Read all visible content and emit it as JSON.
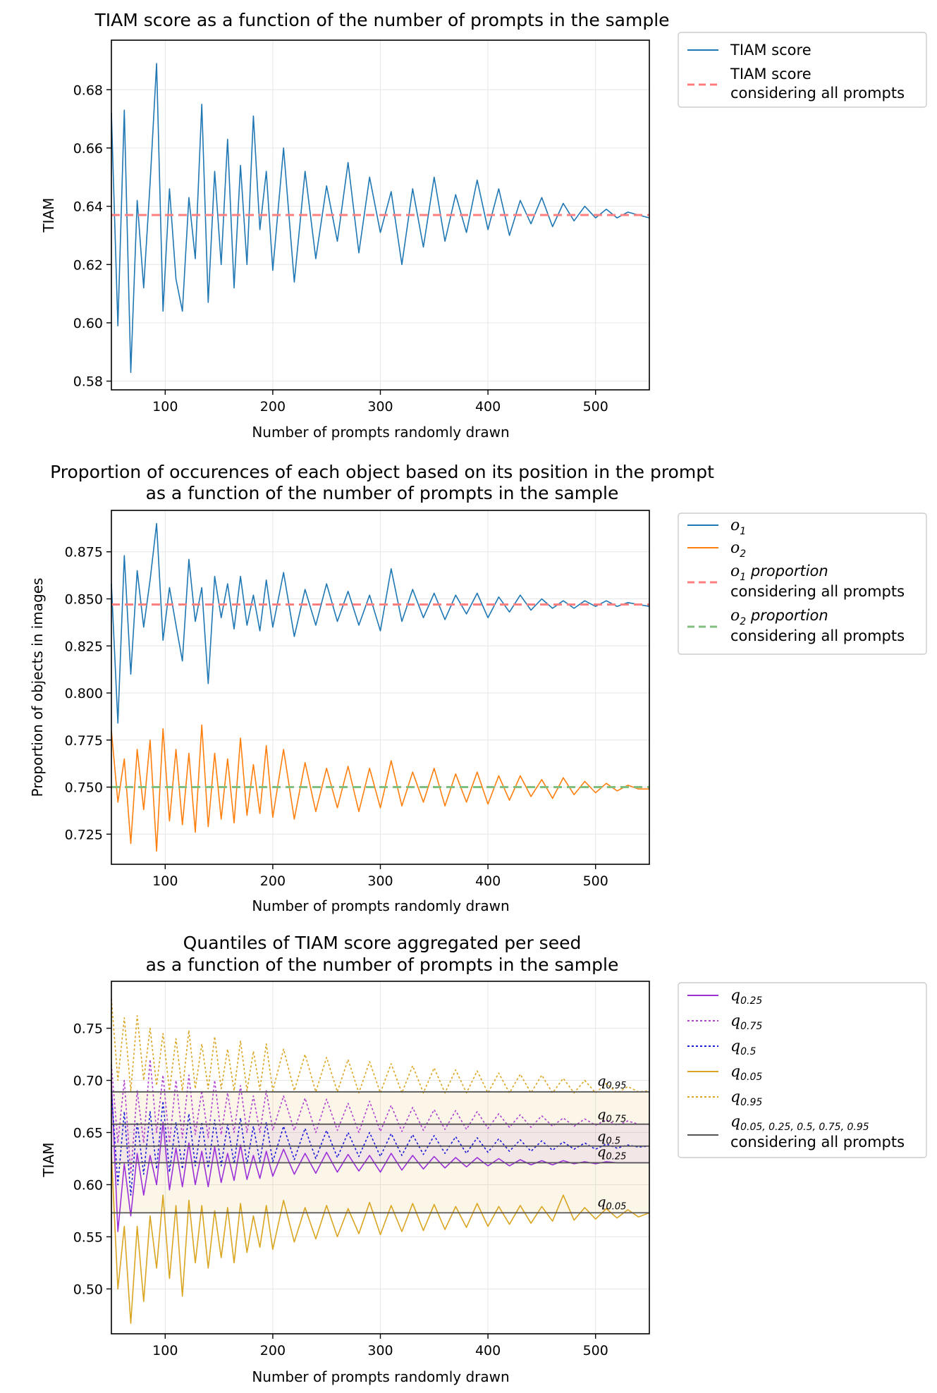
{
  "chart_data": [
    {
      "type": "line",
      "title": "TIAM score as a function of the number of prompts in the sample",
      "subtitle": "",
      "xlabel": "Number of prompts randomly drawn",
      "ylabel": "TIAM",
      "xlim": [
        50,
        550
      ],
      "ylim": [
        0.577,
        0.697
      ],
      "xticks": [
        100,
        200,
        300,
        400,
        500
      ],
      "yticks": [
        0.58,
        0.6,
        0.62,
        0.64,
        0.66,
        0.68
      ],
      "yticklabels": [
        "0.58",
        "0.60",
        "0.62",
        "0.64",
        "0.66",
        "0.68"
      ],
      "grid": true,
      "legend_position": "outside-right",
      "x": [
        50,
        56,
        62,
        68,
        74,
        80,
        86,
        92,
        98,
        104,
        110,
        116,
        122,
        128,
        134,
        140,
        146,
        152,
        158,
        164,
        170,
        176,
        182,
        188,
        194,
        200,
        210,
        220,
        230,
        240,
        250,
        260,
        270,
        280,
        290,
        300,
        310,
        320,
        330,
        340,
        350,
        360,
        370,
        380,
        390,
        400,
        410,
        420,
        430,
        440,
        450,
        460,
        470,
        480,
        490,
        500,
        510,
        520,
        530,
        540,
        550
      ],
      "series": [
        {
          "name": "TIAM score",
          "color": "#1f77b4",
          "style": "solid",
          "values": [
            0.672,
            0.599,
            0.673,
            0.583,
            0.642,
            0.612,
            0.648,
            0.689,
            0.604,
            0.646,
            0.615,
            0.604,
            0.643,
            0.622,
            0.675,
            0.607,
            0.652,
            0.62,
            0.663,
            0.612,
            0.654,
            0.62,
            0.671,
            0.632,
            0.652,
            0.618,
            0.66,
            0.614,
            0.652,
            0.622,
            0.647,
            0.628,
            0.655,
            0.624,
            0.65,
            0.631,
            0.645,
            0.62,
            0.646,
            0.626,
            0.65,
            0.628,
            0.644,
            0.631,
            0.649,
            0.632,
            0.646,
            0.63,
            0.642,
            0.634,
            0.643,
            0.633,
            0.641,
            0.635,
            0.64,
            0.636,
            0.639,
            0.636,
            0.638,
            0.637,
            0.636
          ]
        },
        {
          "name": "TIAM score\nconsidering all prompts",
          "color": "#ff7f7f",
          "style": "dashed",
          "constant": 0.637
        }
      ]
    },
    {
      "type": "line",
      "title": "Proportion of occurences of each object based on its position in the prompt",
      "subtitle": "as a function of the number of prompts in the sample",
      "xlabel": "Number of prompts randomly drawn",
      "ylabel": "Proportion of objects in images",
      "xlim": [
        50,
        550
      ],
      "ylim": [
        0.709,
        0.897
      ],
      "xticks": [
        100,
        200,
        300,
        400,
        500
      ],
      "yticks": [
        0.725,
        0.75,
        0.775,
        0.8,
        0.825,
        0.85,
        0.875
      ],
      "yticklabels": [
        "0.725",
        "0.750",
        "0.775",
        "0.800",
        "0.825",
        "0.850",
        "0.875"
      ],
      "grid": true,
      "legend_position": "outside-right",
      "x": [
        50,
        56,
        62,
        68,
        74,
        80,
        86,
        92,
        98,
        104,
        110,
        116,
        122,
        128,
        134,
        140,
        146,
        152,
        158,
        164,
        170,
        176,
        182,
        188,
        194,
        200,
        210,
        220,
        230,
        240,
        250,
        260,
        270,
        280,
        290,
        300,
        310,
        320,
        330,
        340,
        350,
        360,
        370,
        380,
        390,
        400,
        410,
        420,
        430,
        440,
        450,
        460,
        470,
        480,
        490,
        500,
        510,
        520,
        530,
        540,
        550
      ],
      "series": [
        {
          "name": "o_1",
          "color": "#1f77b4",
          "style": "solid",
          "values": [
            0.858,
            0.784,
            0.873,
            0.81,
            0.865,
            0.835,
            0.86,
            0.89,
            0.828,
            0.856,
            0.836,
            0.817,
            0.871,
            0.838,
            0.856,
            0.805,
            0.862,
            0.84,
            0.858,
            0.834,
            0.862,
            0.836,
            0.852,
            0.833,
            0.86,
            0.835,
            0.864,
            0.83,
            0.855,
            0.836,
            0.858,
            0.838,
            0.854,
            0.836,
            0.852,
            0.833,
            0.866,
            0.838,
            0.855,
            0.84,
            0.853,
            0.839,
            0.852,
            0.842,
            0.853,
            0.84,
            0.851,
            0.843,
            0.852,
            0.844,
            0.85,
            0.845,
            0.849,
            0.845,
            0.849,
            0.846,
            0.849,
            0.846,
            0.848,
            0.847,
            0.846
          ]
        },
        {
          "name": "o_2",
          "color": "#ff7f0e",
          "style": "solid",
          "values": [
            0.78,
            0.742,
            0.765,
            0.72,
            0.77,
            0.738,
            0.775,
            0.716,
            0.781,
            0.732,
            0.77,
            0.73,
            0.768,
            0.726,
            0.783,
            0.729,
            0.768,
            0.733,
            0.765,
            0.731,
            0.776,
            0.735,
            0.762,
            0.736,
            0.772,
            0.734,
            0.77,
            0.733,
            0.763,
            0.737,
            0.76,
            0.739,
            0.761,
            0.737,
            0.76,
            0.739,
            0.764,
            0.74,
            0.758,
            0.742,
            0.76,
            0.74,
            0.757,
            0.742,
            0.758,
            0.741,
            0.756,
            0.743,
            0.756,
            0.745,
            0.754,
            0.744,
            0.755,
            0.746,
            0.753,
            0.747,
            0.752,
            0.748,
            0.751,
            0.749,
            0.749
          ]
        },
        {
          "name": "o_1 proportion\nconsidering all prompts",
          "color": "#ff7f7f",
          "style": "dashed",
          "constant": 0.847
        },
        {
          "name": "o_2 proportion\nconsidering all prompts",
          "color": "#7fbf7f",
          "style": "dashed",
          "constant": 0.75
        }
      ]
    },
    {
      "type": "line",
      "title": "Quantiles of TIAM score aggregated per seed",
      "subtitle": "as a function of the number of prompts in the sample",
      "xlabel": "Number of prompts randomly drawn",
      "ylabel": "TIAM",
      "xlim": [
        50,
        550
      ],
      "ylim": [
        0.457,
        0.795
      ],
      "xticks": [
        100,
        200,
        300,
        400,
        500
      ],
      "yticks": [
        0.5,
        0.55,
        0.6,
        0.65,
        0.7,
        0.75
      ],
      "yticklabels": [
        "0.50",
        "0.55",
        "0.60",
        "0.65",
        "0.70",
        "0.75"
      ],
      "grid": true,
      "legend_position": "outside-right",
      "x": [
        50,
        56,
        62,
        68,
        74,
        80,
        86,
        92,
        98,
        104,
        110,
        116,
        122,
        128,
        134,
        140,
        146,
        152,
        158,
        164,
        170,
        176,
        182,
        188,
        194,
        200,
        210,
        220,
        230,
        240,
        250,
        260,
        270,
        280,
        290,
        300,
        310,
        320,
        330,
        340,
        350,
        360,
        370,
        380,
        390,
        400,
        410,
        420,
        430,
        440,
        450,
        460,
        470,
        480,
        490,
        500,
        510,
        520,
        530,
        540,
        550
      ],
      "series": [
        {
          "name": "q_{0.25}",
          "color": "#9b30d9",
          "style": "solid",
          "values": [
            0.7,
            0.555,
            0.62,
            0.57,
            0.63,
            0.59,
            0.628,
            0.6,
            0.66,
            0.595,
            0.635,
            0.598,
            0.64,
            0.6,
            0.632,
            0.598,
            0.636,
            0.602,
            0.63,
            0.604,
            0.638,
            0.605,
            0.628,
            0.606,
            0.632,
            0.608,
            0.634,
            0.61,
            0.63,
            0.611,
            0.631,
            0.612,
            0.629,
            0.613,
            0.628,
            0.612,
            0.63,
            0.614,
            0.628,
            0.615,
            0.627,
            0.616,
            0.626,
            0.617,
            0.626,
            0.618,
            0.625,
            0.618,
            0.624,
            0.619,
            0.623,
            0.619,
            0.623,
            0.62,
            0.622,
            0.62,
            0.622,
            0.621,
            0.621,
            0.621,
            0.621
          ]
        },
        {
          "name": "q_{0.75}",
          "color": "#b040d0",
          "style": "dotted",
          "values": [
            0.715,
            0.64,
            0.7,
            0.61,
            0.69,
            0.64,
            0.72,
            0.65,
            0.705,
            0.64,
            0.7,
            0.645,
            0.705,
            0.648,
            0.69,
            0.645,
            0.7,
            0.648,
            0.688,
            0.65,
            0.695,
            0.65,
            0.685,
            0.65,
            0.69,
            0.652,
            0.685,
            0.652,
            0.683,
            0.65,
            0.682,
            0.652,
            0.678,
            0.65,
            0.68,
            0.651,
            0.676,
            0.651,
            0.674,
            0.652,
            0.672,
            0.653,
            0.671,
            0.653,
            0.67,
            0.654,
            0.668,
            0.655,
            0.667,
            0.655,
            0.666,
            0.656,
            0.664,
            0.656,
            0.663,
            0.657,
            0.662,
            0.657,
            0.661,
            0.658,
            0.658
          ]
        },
        {
          "name": "q_{0.5}",
          "color": "#1a1ad9",
          "style": "dotted",
          "values": [
            0.69,
            0.6,
            0.67,
            0.59,
            0.66,
            0.61,
            0.67,
            0.615,
            0.68,
            0.612,
            0.66,
            0.615,
            0.668,
            0.618,
            0.66,
            0.616,
            0.662,
            0.618,
            0.658,
            0.62,
            0.664,
            0.62,
            0.656,
            0.622,
            0.66,
            0.622,
            0.656,
            0.624,
            0.654,
            0.625,
            0.652,
            0.626,
            0.65,
            0.627,
            0.65,
            0.627,
            0.649,
            0.628,
            0.648,
            0.629,
            0.647,
            0.63,
            0.646,
            0.63,
            0.645,
            0.631,
            0.644,
            0.632,
            0.643,
            0.632,
            0.642,
            0.633,
            0.641,
            0.634,
            0.64,
            0.634,
            0.639,
            0.635,
            0.638,
            0.636,
            0.637
          ]
        },
        {
          "name": "q_{0.05}",
          "color": "#daa520",
          "style": "solid",
          "values": [
            0.63,
            0.5,
            0.56,
            0.467,
            0.56,
            0.488,
            0.57,
            0.52,
            0.59,
            0.51,
            0.58,
            0.493,
            0.585,
            0.525,
            0.58,
            0.52,
            0.575,
            0.53,
            0.578,
            0.525,
            0.582,
            0.535,
            0.57,
            0.54,
            0.58,
            0.538,
            0.585,
            0.545,
            0.578,
            0.548,
            0.58,
            0.55,
            0.577,
            0.553,
            0.583,
            0.552,
            0.58,
            0.555,
            0.582,
            0.556,
            0.581,
            0.557,
            0.579,
            0.559,
            0.582,
            0.56,
            0.579,
            0.562,
            0.58,
            0.563,
            0.579,
            0.565,
            0.59,
            0.566,
            0.578,
            0.567,
            0.577,
            0.568,
            0.576,
            0.569,
            0.573
          ]
        },
        {
          "name": "q_{0.95}",
          "color": "#daa520",
          "style": "dotted",
          "values": [
            0.778,
            0.7,
            0.76,
            0.69,
            0.762,
            0.7,
            0.75,
            0.695,
            0.745,
            0.69,
            0.74,
            0.69,
            0.748,
            0.692,
            0.735,
            0.692,
            0.742,
            0.692,
            0.73,
            0.69,
            0.738,
            0.69,
            0.728,
            0.691,
            0.735,
            0.69,
            0.73,
            0.69,
            0.725,
            0.689,
            0.722,
            0.689,
            0.72,
            0.688,
            0.718,
            0.688,
            0.716,
            0.688,
            0.714,
            0.688,
            0.712,
            0.688,
            0.71,
            0.688,
            0.709,
            0.688,
            0.707,
            0.688,
            0.706,
            0.688,
            0.705,
            0.688,
            0.702,
            0.688,
            0.7,
            0.688,
            0.697,
            0.688,
            0.694,
            0.689,
            0.69
          ]
        },
        {
          "name": "q_{0.05, 0.25, 0.5, 0.75, 0.95}\nconsidering all prompts",
          "color": "#555555",
          "style": "solid",
          "constants": [
            0.573,
            0.621,
            0.637,
            0.658,
            0.689
          ]
        }
      ],
      "annotations": [
        {
          "label": "q",
          "sub": "0.95",
          "x": 500,
          "y": 0.695
        },
        {
          "label": "q",
          "sub": "0.75",
          "x": 500,
          "y": 0.663
        },
        {
          "label": "q",
          "sub": "0.5",
          "x": 500,
          "y": 0.642
        },
        {
          "label": "q",
          "sub": "0.25",
          "x": 500,
          "y": 0.627
        },
        {
          "label": "q",
          "sub": "0.05",
          "x": 500,
          "y": 0.579
        }
      ]
    }
  ],
  "legends": [
    {
      "items": [
        {
          "main": "TIAM score",
          "sub": "",
          "line2": ""
        },
        {
          "main": "TIAM score",
          "sub": "",
          "line2": "considering all prompts"
        }
      ]
    },
    {
      "items": [
        {
          "main": "o",
          "sub": "1",
          "suffix": "",
          "line2": ""
        },
        {
          "main": "o",
          "sub": "2",
          "suffix": "",
          "line2": ""
        },
        {
          "main": "o",
          "sub": "1",
          "suffix": " proportion",
          "line2": "considering all prompts"
        },
        {
          "main": "o",
          "sub": "2",
          "suffix": " proportion",
          "line2": "considering all prompts"
        }
      ]
    },
    {
      "items": [
        {
          "main": "q",
          "sub": "0.25",
          "suffix": "",
          "line2": ""
        },
        {
          "main": "q",
          "sub": "0.75",
          "suffix": "",
          "line2": ""
        },
        {
          "main": "q",
          "sub": "0.5",
          "suffix": "",
          "line2": ""
        },
        {
          "main": "q",
          "sub": "0.05",
          "suffix": "",
          "line2": ""
        },
        {
          "main": "q",
          "sub": "0.95",
          "suffix": "",
          "line2": ""
        },
        {
          "main": "q",
          "sub": "0.05, 0.25, 0.5, 0.75, 0.95",
          "suffix": "",
          "line2": "considering all prompts"
        }
      ]
    }
  ]
}
